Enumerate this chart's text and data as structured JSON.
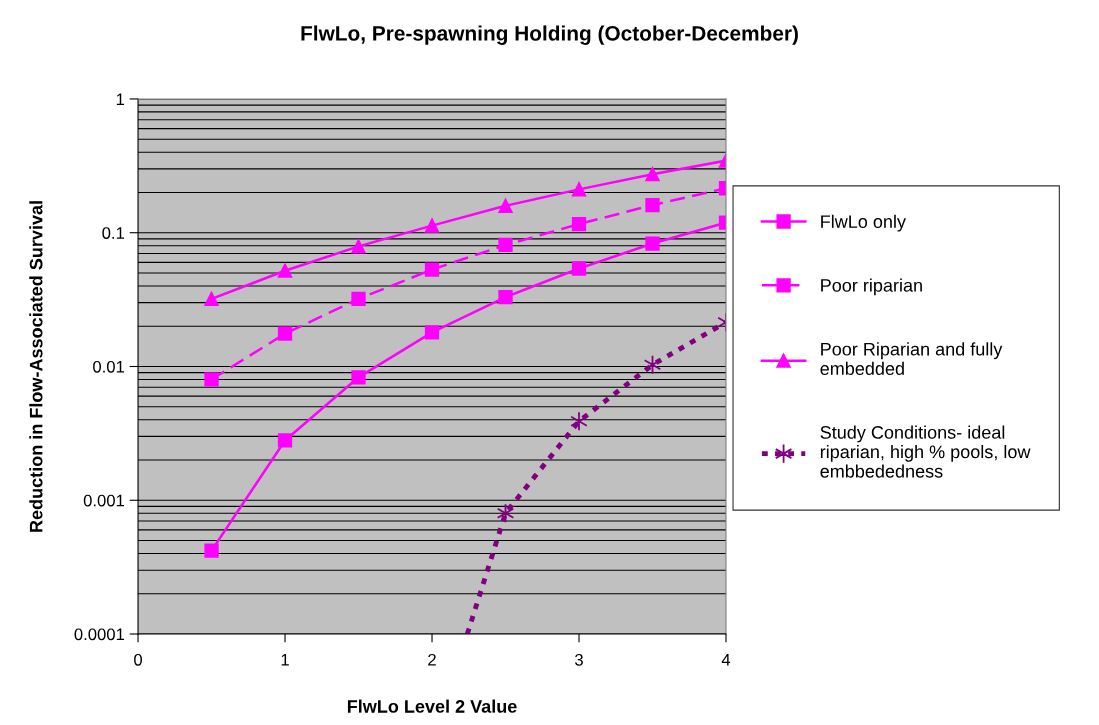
{
  "chart_data": {
    "type": "line",
    "title": "FlwLo, Pre-spawning Holding (October-December)",
    "xlabel": "FlwLo Level 2 Value",
    "ylabel": "Reduction in Flow-Associated Survival",
    "x": [
      0.5,
      1,
      1.5,
      2,
      2.5,
      3,
      3.5,
      4
    ],
    "series": [
      {
        "name": "FlwLo only",
        "color": "#ff00ff",
        "marker": "square",
        "line_style": "solid",
        "values": [
          0.00042,
          0.0028,
          0.0083,
          0.018,
          0.033,
          0.054,
          0.083,
          0.119
        ]
      },
      {
        "name": "Poor riparian",
        "color": "#ff00ff",
        "marker": "square",
        "line_style": "dashed",
        "values": [
          0.008,
          0.0176,
          0.032,
          0.053,
          0.081,
          0.116,
          0.161,
          0.215
        ]
      },
      {
        "name": "Poor Riparian and fully\nembedded",
        "color": "#ff00ff",
        "marker": "triangle",
        "line_style": "solid",
        "values": [
          0.032,
          0.052,
          0.079,
          0.113,
          0.159,
          0.211,
          0.274,
          0.346
        ]
      },
      {
        "name": "Study Conditions- ideal\nriparian, high % pools, low\nembbededness",
        "color": "#800080",
        "marker": "cross",
        "line_style": "dotted",
        "x": [
          2.24,
          2.5,
          3,
          3.5,
          4
        ],
        "values": [
          0.0001,
          0.0008,
          0.0039,
          0.0103,
          0.0214
        ]
      }
    ],
    "log": "y",
    "xlim": [
      0,
      4
    ],
    "xticks": [
      0,
      1,
      2,
      3,
      4
    ],
    "ylim": [
      0.0001,
      1
    ],
    "yticks": [
      0.0001,
      0.001,
      0.01,
      0.1,
      1
    ],
    "grid": "y",
    "legend": "right"
  }
}
